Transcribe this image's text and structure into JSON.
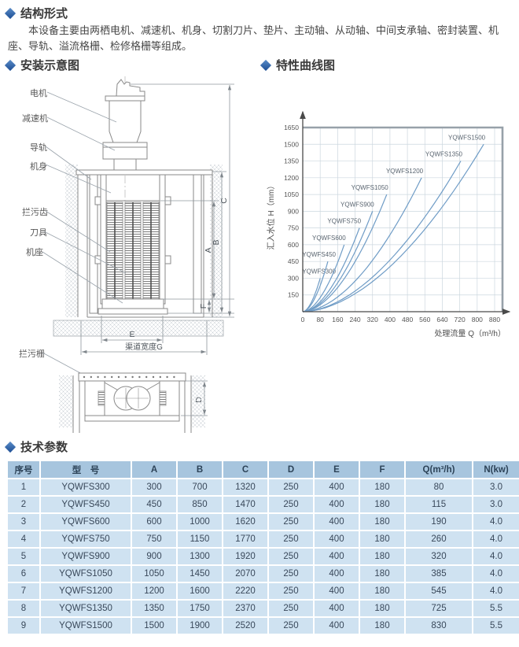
{
  "accent_color": "#2e66ad",
  "sections": {
    "structure": {
      "title": "结构形式",
      "body": "本设备主要由两栖电机、减速机、机身、切割刀片、垫片、主动轴、从动轴、中间支承轴、密封装置、机座、导轨、溢流格栅、检修格栅等组成。"
    },
    "installation": {
      "title": "安装示意图"
    },
    "curves": {
      "title": "特性曲线图"
    },
    "parameters": {
      "title": "技术参数"
    }
  },
  "diagram": {
    "labels": {
      "motor": "电机",
      "reducer": "减速机",
      "guide_rail": "导轨",
      "body": "机身",
      "trash_teeth": "拦污齿",
      "cutter": "刀具",
      "base": "机座",
      "trash_rack": "拦污栅"
    },
    "dimensions": {
      "a": "A",
      "b": "B",
      "c": "C",
      "d": "D",
      "e": "E",
      "f": "F",
      "g": "渠道宽度G"
    }
  },
  "chart_data": {
    "type": "line",
    "title": "",
    "xlabel": "处理流量 Q（m³/h）",
    "ylabel": "汇入水位 H（mm）",
    "xlim": [
      0,
      880
    ],
    "ylim": [
      0,
      1650
    ],
    "xticks": [
      0,
      80,
      160,
      240,
      320,
      400,
      480,
      560,
      640,
      720,
      800,
      880
    ],
    "yticks": [
      150,
      300,
      450,
      600,
      750,
      900,
      1050,
      1200,
      1350,
      1500,
      1650
    ],
    "grid": true,
    "legend_position": "curve-end-labels",
    "curve_exponent": 1.8,
    "series_note": "each curve starts at [0,0] and rises to its end point [Qmax, Hmax]",
    "series": [
      {
        "name": "YQWFS300",
        "start": [
          0,
          0
        ],
        "end": [
          80,
          300
        ]
      },
      {
        "name": "YQWFS450",
        "start": [
          0,
          0
        ],
        "end": [
          115,
          450
        ]
      },
      {
        "name": "YQWFS600",
        "start": [
          0,
          0
        ],
        "end": [
          190,
          600
        ]
      },
      {
        "name": "YQWFS750",
        "start": [
          0,
          0
        ],
        "end": [
          260,
          750
        ]
      },
      {
        "name": "YQWFS900",
        "start": [
          0,
          0
        ],
        "end": [
          320,
          900
        ]
      },
      {
        "name": "YQWFS1050",
        "start": [
          0,
          0
        ],
        "end": [
          385,
          1050
        ]
      },
      {
        "name": "YQWFS1200",
        "start": [
          0,
          0
        ],
        "end": [
          545,
          1200
        ]
      },
      {
        "name": "YQWFS1350",
        "start": [
          0,
          0
        ],
        "end": [
          725,
          1350
        ]
      },
      {
        "name": "YQWFS1500",
        "start": [
          0,
          0
        ],
        "end": [
          830,
          1500
        ]
      }
    ],
    "line_color": "#6f9cc6",
    "grid_color": "#ccd7df",
    "frame_color": "#97a1a9",
    "axis_color": "#4a4a4a"
  },
  "table": {
    "columns": [
      "序号",
      "型　号",
      "A",
      "B",
      "C",
      "D",
      "E",
      "F",
      "Q(m³/h)",
      "N(kw)"
    ],
    "rows": [
      [
        "1",
        "YQWFS300",
        "300",
        "700",
        "1320",
        "250",
        "400",
        "180",
        "80",
        "3.0"
      ],
      [
        "2",
        "YQWFS450",
        "450",
        "850",
        "1470",
        "250",
        "400",
        "180",
        "115",
        "3.0"
      ],
      [
        "3",
        "YQWFS600",
        "600",
        "1000",
        "1620",
        "250",
        "400",
        "180",
        "190",
        "4.0"
      ],
      [
        "4",
        "YQWFS750",
        "750",
        "1150",
        "1770",
        "250",
        "400",
        "180",
        "260",
        "4.0"
      ],
      [
        "5",
        "YQWFS900",
        "900",
        "1300",
        "1920",
        "250",
        "400",
        "180",
        "320",
        "4.0"
      ],
      [
        "6",
        "YQWFS1050",
        "1050",
        "1450",
        "2070",
        "250",
        "400",
        "180",
        "385",
        "4.0"
      ],
      [
        "7",
        "YQWFS1200",
        "1200",
        "1600",
        "2220",
        "250",
        "400",
        "180",
        "545",
        "4.0"
      ],
      [
        "8",
        "YQWFS1350",
        "1350",
        "1750",
        "2370",
        "250",
        "400",
        "180",
        "725",
        "5.5"
      ],
      [
        "9",
        "YQWFS1500",
        "1500",
        "1900",
        "2520",
        "250",
        "400",
        "180",
        "830",
        "5.5"
      ]
    ],
    "header_bg": "#a7c5de",
    "row_bg": "#cfe2f1"
  }
}
